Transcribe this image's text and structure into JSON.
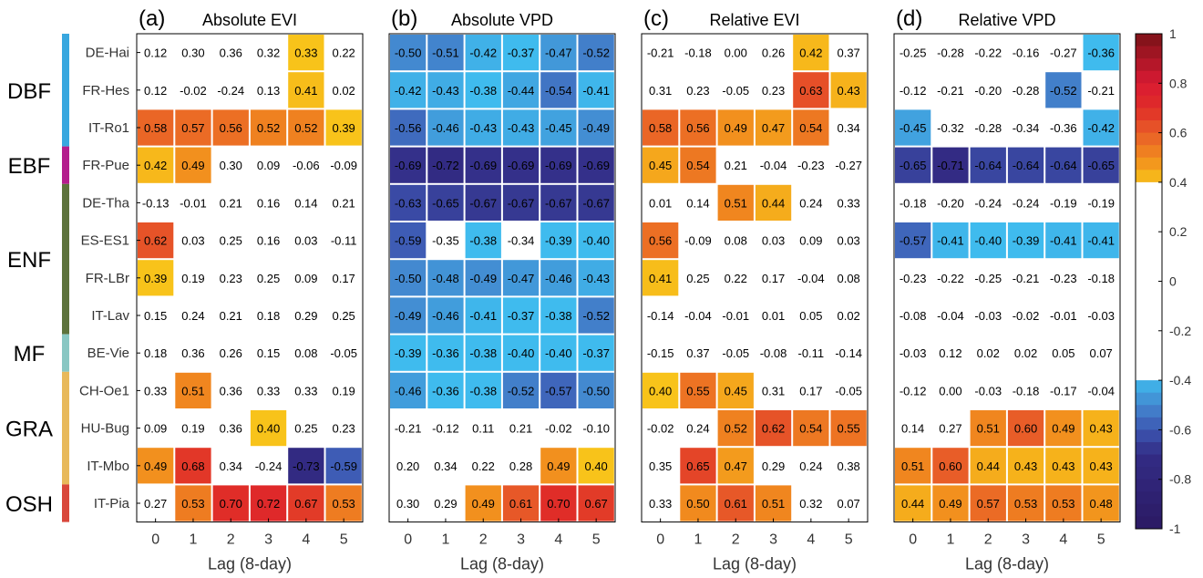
{
  "figure": {
    "sites": [
      "DE-Hai",
      "FR-Hes",
      "IT-Ro1",
      "FR-Pue",
      "DE-Tha",
      "ES-ES1",
      "FR-LBr",
      "IT-Lav",
      "BE-Vie",
      "CH-Oe1",
      "HU-Bug",
      "IT-Mbo",
      "IT-Pia"
    ],
    "groups": [
      {
        "label": "DBF",
        "start": 0,
        "end": 2,
        "color": "#38a7df"
      },
      {
        "label": "EBF",
        "start": 3,
        "end": 3,
        "color": "#b41d8d"
      },
      {
        "label": "ENF",
        "start": 4,
        "end": 7,
        "color": "#5d733c"
      },
      {
        "label": "MF",
        "start": 8,
        "end": 8,
        "color": "#89c7c3"
      },
      {
        "label": "GRA",
        "start": 9,
        "end": 11,
        "color": "#e8b95b"
      },
      {
        "label": "OSH",
        "start": 12,
        "end": 12,
        "color": "#d9473b"
      }
    ],
    "colorbar": {
      "ticks": [
        "1",
        "0.8",
        "0.6",
        "0.4",
        "0.2",
        "0",
        "-0.2",
        "-0.4",
        "-0.6",
        "-0.8",
        "-1"
      ],
      "range": [
        -1,
        1
      ],
      "blank_range": [
        -0.4,
        0.4
      ]
    },
    "colors": {
      "white_band": "#ffffff",
      "cell_border": "#ffffff",
      "frame": "#000000"
    }
  },
  "chart_data": [
    {
      "type": "heatmap",
      "panel": "(a)",
      "title": "Absolute EVI",
      "xlabel": "Lag (8-day)",
      "x": [
        "0",
        "1",
        "2",
        "3",
        "4",
        "5"
      ],
      "y": [
        "DE-Hai",
        "FR-Hes",
        "IT-Ro1",
        "FR-Pue",
        "DE-Tha",
        "ES-ES1",
        "FR-LBr",
        "IT-Lav",
        "BE-Vie",
        "CH-Oe1",
        "HU-Bug",
        "IT-Mbo",
        "IT-Pia"
      ],
      "values": [
        [
          0.12,
          0.3,
          0.36,
          0.32,
          0.33,
          0.22
        ],
        [
          0.12,
          -0.02,
          -0.24,
          0.13,
          0.41,
          0.02
        ],
        [
          0.58,
          0.57,
          0.56,
          0.52,
          0.52,
          0.39
        ],
        [
          0.42,
          0.49,
          0.3,
          0.09,
          -0.06,
          -0.09
        ],
        [
          -0.13,
          -0.01,
          0.21,
          0.16,
          0.14,
          0.21
        ],
        [
          0.62,
          0.03,
          0.25,
          0.16,
          0.03,
          -0.11
        ],
        [
          0.39,
          0.19,
          0.23,
          0.25,
          0.09,
          0.17
        ],
        [
          0.15,
          0.24,
          0.21,
          0.18,
          0.29,
          0.25
        ],
        [
          0.18,
          0.36,
          0.26,
          0.15,
          0.08,
          -0.05
        ],
        [
          0.33,
          0.51,
          0.36,
          0.33,
          0.33,
          0.19
        ],
        [
          0.09,
          0.19,
          0.36,
          0.4,
          0.25,
          0.23
        ],
        [
          0.49,
          0.68,
          0.34,
          -0.24,
          -0.73,
          -0.59
        ],
        [
          0.27,
          0.53,
          0.7,
          0.72,
          0.67,
          0.53
        ]
      ],
      "highlighted": [
        [
          0,
          4
        ],
        [
          1,
          4
        ],
        [
          2,
          0
        ],
        [
          2,
          1
        ],
        [
          2,
          2
        ],
        [
          2,
          3
        ],
        [
          2,
          4
        ],
        [
          2,
          5
        ],
        [
          3,
          0
        ],
        [
          3,
          1
        ],
        [
          5,
          0
        ],
        [
          6,
          0
        ],
        [
          9,
          1
        ],
        [
          10,
          3
        ],
        [
          11,
          0
        ],
        [
          11,
          1
        ],
        [
          11,
          4
        ],
        [
          11,
          5
        ],
        [
          12,
          1
        ],
        [
          12,
          2
        ],
        [
          12,
          3
        ],
        [
          12,
          4
        ],
        [
          12,
          5
        ]
      ]
    },
    {
      "type": "heatmap",
      "panel": "(b)",
      "title": "Absolute VPD",
      "xlabel": "Lag (8-day)",
      "x": [
        "0",
        "1",
        "2",
        "3",
        "4",
        "5"
      ],
      "y": [
        "DE-Hai",
        "FR-Hes",
        "IT-Ro1",
        "FR-Pue",
        "DE-Tha",
        "ES-ES1",
        "FR-LBr",
        "IT-Lav",
        "BE-Vie",
        "CH-Oe1",
        "HU-Bug",
        "IT-Mbo",
        "IT-Pia"
      ],
      "values": [
        [
          -0.5,
          -0.51,
          -0.42,
          -0.37,
          -0.47,
          -0.52
        ],
        [
          -0.42,
          -0.43,
          -0.38,
          -0.44,
          -0.54,
          -0.41
        ],
        [
          -0.56,
          -0.46,
          -0.43,
          -0.43,
          -0.45,
          -0.49
        ],
        [
          -0.69,
          -0.72,
          -0.69,
          -0.69,
          -0.69,
          -0.69
        ],
        [
          -0.63,
          -0.65,
          -0.67,
          -0.67,
          -0.67,
          -0.67
        ],
        [
          -0.59,
          -0.35,
          -0.38,
          -0.34,
          -0.39,
          -0.4
        ],
        [
          -0.5,
          -0.48,
          -0.49,
          -0.47,
          -0.46,
          -0.43
        ],
        [
          -0.49,
          -0.46,
          -0.41,
          -0.37,
          -0.38,
          -0.52
        ],
        [
          -0.39,
          -0.36,
          -0.38,
          -0.4,
          -0.4,
          -0.37
        ],
        [
          -0.46,
          -0.36,
          -0.38,
          -0.52,
          -0.57,
          -0.5
        ],
        [
          -0.21,
          -0.12,
          0.11,
          0.21,
          -0.02,
          -0.1
        ],
        [
          0.2,
          0.34,
          0.22,
          0.28,
          0.49,
          0.4
        ],
        [
          0.3,
          0.29,
          0.49,
          0.61,
          0.7,
          0.67
        ]
      ],
      "highlighted": [
        [
          0,
          0
        ],
        [
          0,
          1
        ],
        [
          0,
          2
        ],
        [
          0,
          3
        ],
        [
          0,
          4
        ],
        [
          0,
          5
        ],
        [
          1,
          0
        ],
        [
          1,
          1
        ],
        [
          1,
          2
        ],
        [
          1,
          3
        ],
        [
          1,
          4
        ],
        [
          1,
          5
        ],
        [
          2,
          0
        ],
        [
          2,
          1
        ],
        [
          2,
          2
        ],
        [
          2,
          3
        ],
        [
          2,
          4
        ],
        [
          2,
          5
        ],
        [
          3,
          0
        ],
        [
          3,
          1
        ],
        [
          3,
          2
        ],
        [
          3,
          3
        ],
        [
          3,
          4
        ],
        [
          3,
          5
        ],
        [
          4,
          0
        ],
        [
          4,
          1
        ],
        [
          4,
          2
        ],
        [
          4,
          3
        ],
        [
          4,
          4
        ],
        [
          4,
          5
        ],
        [
          5,
          0
        ],
        [
          5,
          2
        ],
        [
          5,
          4
        ],
        [
          5,
          5
        ],
        [
          6,
          0
        ],
        [
          6,
          1
        ],
        [
          6,
          2
        ],
        [
          6,
          3
        ],
        [
          6,
          4
        ],
        [
          6,
          5
        ],
        [
          7,
          0
        ],
        [
          7,
          1
        ],
        [
          7,
          2
        ],
        [
          7,
          3
        ],
        [
          7,
          4
        ],
        [
          7,
          5
        ],
        [
          8,
          0
        ],
        [
          8,
          1
        ],
        [
          8,
          2
        ],
        [
          8,
          3
        ],
        [
          8,
          4
        ],
        [
          8,
          5
        ],
        [
          9,
          0
        ],
        [
          9,
          1
        ],
        [
          9,
          2
        ],
        [
          9,
          3
        ],
        [
          9,
          4
        ],
        [
          9,
          5
        ],
        [
          11,
          4
        ],
        [
          11,
          5
        ],
        [
          12,
          2
        ],
        [
          12,
          3
        ],
        [
          12,
          4
        ],
        [
          12,
          5
        ]
      ]
    },
    {
      "type": "heatmap",
      "panel": "(c)",
      "title": "Relative EVI",
      "xlabel": "Lag (8-day)",
      "x": [
        "0",
        "1",
        "2",
        "3",
        "4",
        "5"
      ],
      "y": [
        "DE-Hai",
        "FR-Hes",
        "IT-Ro1",
        "FR-Pue",
        "DE-Tha",
        "ES-ES1",
        "FR-LBr",
        "IT-Lav",
        "BE-Vie",
        "CH-Oe1",
        "HU-Bug",
        "IT-Mbo",
        "IT-Pia"
      ],
      "values": [
        [
          -0.21,
          -0.18,
          0.0,
          0.26,
          0.42,
          0.37
        ],
        [
          0.31,
          0.23,
          -0.05,
          0.23,
          0.63,
          0.43
        ],
        [
          0.58,
          0.56,
          0.49,
          0.47,
          0.54,
          0.34
        ],
        [
          0.45,
          0.54,
          0.21,
          -0.04,
          -0.23,
          -0.27
        ],
        [
          0.01,
          0.14,
          0.51,
          0.44,
          0.24,
          0.33
        ],
        [
          0.56,
          -0.09,
          0.08,
          0.03,
          0.09,
          0.03
        ],
        [
          0.41,
          0.25,
          0.22,
          0.17,
          -0.04,
          0.08
        ],
        [
          -0.14,
          -0.04,
          -0.01,
          0.01,
          0.05,
          0.02
        ],
        [
          -0.15,
          0.37,
          -0.05,
          -0.08,
          -0.11,
          -0.14
        ],
        [
          0.4,
          0.55,
          0.45,
          0.31,
          0.17,
          -0.05
        ],
        [
          -0.02,
          0.24,
          0.52,
          0.62,
          0.54,
          0.55
        ],
        [
          0.35,
          0.65,
          0.47,
          0.29,
          0.24,
          0.38
        ],
        [
          0.33,
          0.5,
          0.61,
          0.51,
          0.32,
          0.07
        ]
      ],
      "highlighted": [
        [
          0,
          4
        ],
        [
          1,
          4
        ],
        [
          1,
          5
        ],
        [
          2,
          0
        ],
        [
          2,
          1
        ],
        [
          2,
          2
        ],
        [
          2,
          3
        ],
        [
          2,
          4
        ],
        [
          3,
          0
        ],
        [
          3,
          1
        ],
        [
          4,
          2
        ],
        [
          4,
          3
        ],
        [
          5,
          0
        ],
        [
          6,
          0
        ],
        [
          9,
          0
        ],
        [
          9,
          1
        ],
        [
          9,
          2
        ],
        [
          10,
          2
        ],
        [
          10,
          3
        ],
        [
          10,
          4
        ],
        [
          10,
          5
        ],
        [
          11,
          1
        ],
        [
          11,
          2
        ],
        [
          12,
          1
        ],
        [
          12,
          2
        ],
        [
          12,
          3
        ]
      ]
    },
    {
      "type": "heatmap",
      "panel": "(d)",
      "title": "Relative VPD",
      "xlabel": "Lag (8-day)",
      "x": [
        "0",
        "1",
        "2",
        "3",
        "4",
        "5"
      ],
      "y": [
        "DE-Hai",
        "FR-Hes",
        "IT-Ro1",
        "FR-Pue",
        "DE-Tha",
        "ES-ES1",
        "FR-LBr",
        "IT-Lav",
        "BE-Vie",
        "CH-Oe1",
        "HU-Bug",
        "IT-Mbo",
        "IT-Pia"
      ],
      "values": [
        [
          -0.25,
          -0.28,
          -0.22,
          -0.16,
          -0.27,
          -0.36
        ],
        [
          -0.12,
          -0.21,
          -0.2,
          -0.28,
          -0.52,
          -0.21
        ],
        [
          -0.45,
          -0.32,
          -0.28,
          -0.34,
          -0.36,
          -0.42
        ],
        [
          -0.65,
          -0.71,
          -0.64,
          -0.64,
          -0.64,
          -0.65
        ],
        [
          -0.18,
          -0.2,
          -0.24,
          -0.24,
          -0.19,
          -0.19
        ],
        [
          -0.57,
          -0.41,
          -0.4,
          -0.39,
          -0.41,
          -0.41
        ],
        [
          -0.23,
          -0.22,
          -0.25,
          -0.21,
          -0.23,
          -0.18
        ],
        [
          -0.08,
          -0.04,
          -0.03,
          -0.02,
          -0.01,
          -0.03
        ],
        [
          -0.03,
          0.12,
          0.02,
          0.02,
          0.05,
          0.07
        ],
        [
          -0.12,
          0.0,
          -0.03,
          -0.18,
          -0.17,
          -0.04
        ],
        [
          0.14,
          0.27,
          0.51,
          0.6,
          0.49,
          0.43
        ],
        [
          0.51,
          0.6,
          0.44,
          0.43,
          0.43,
          0.43
        ],
        [
          0.44,
          0.49,
          0.57,
          0.53,
          0.53,
          0.48
        ]
      ],
      "highlighted": [
        [
          0,
          5
        ],
        [
          1,
          4
        ],
        [
          2,
          0
        ],
        [
          2,
          5
        ],
        [
          3,
          0
        ],
        [
          3,
          1
        ],
        [
          3,
          2
        ],
        [
          3,
          3
        ],
        [
          3,
          4
        ],
        [
          3,
          5
        ],
        [
          5,
          0
        ],
        [
          5,
          1
        ],
        [
          5,
          2
        ],
        [
          5,
          3
        ],
        [
          5,
          4
        ],
        [
          5,
          5
        ],
        [
          10,
          2
        ],
        [
          10,
          3
        ],
        [
          10,
          4
        ],
        [
          10,
          5
        ],
        [
          11,
          0
        ],
        [
          11,
          1
        ],
        [
          11,
          2
        ],
        [
          11,
          3
        ],
        [
          11,
          4
        ],
        [
          11,
          5
        ],
        [
          12,
          0
        ],
        [
          12,
          1
        ],
        [
          12,
          2
        ],
        [
          12,
          3
        ],
        [
          12,
          4
        ],
        [
          12,
          5
        ]
      ]
    }
  ]
}
